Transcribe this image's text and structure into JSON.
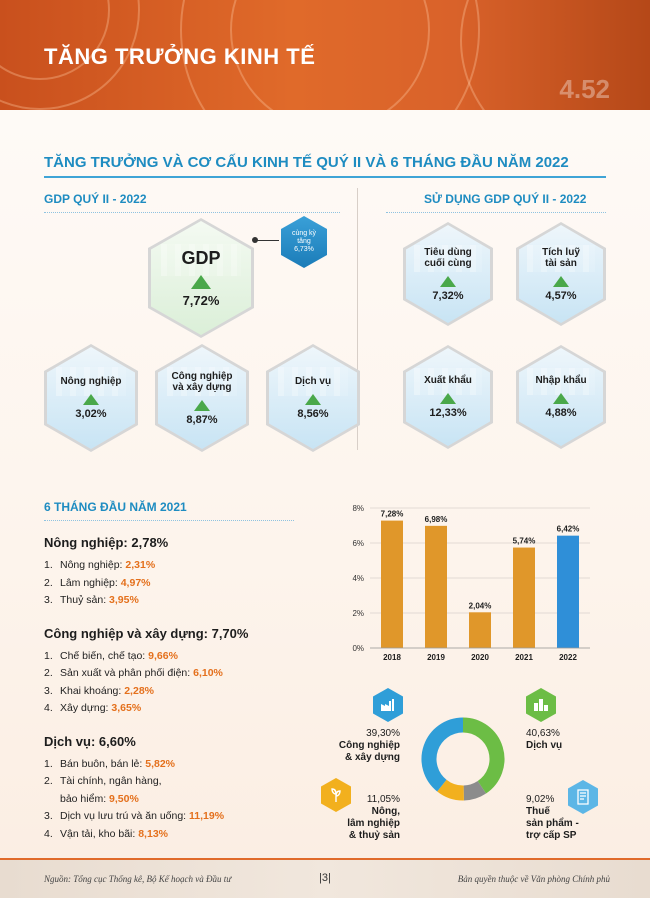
{
  "header": {
    "title": "TĂNG TRƯỞNG KINH TẾ",
    "deco_number": "4.52"
  },
  "section": {
    "title": "TĂNG TRƯỞNG VÀ CƠ CẤU KINH TẾ QUÝ II VÀ 6 THÁNG ĐẦU NĂM 2022"
  },
  "gdp_q2": {
    "title": "GDP QUÝ II - 2022",
    "main": {
      "label": "GDP",
      "value": "7,72%"
    },
    "badge": {
      "line1": "cùng kỳ",
      "line2": "tăng",
      "line3": "6,73%"
    },
    "sectors": [
      {
        "label": "Nông nghiệp",
        "value": "3,02%"
      },
      {
        "label": "Công nghiệp và xây dựng",
        "value": "8,87%"
      },
      {
        "label": "Dịch vụ",
        "value": "8,56%"
      }
    ]
  },
  "gdp_use": {
    "title": "SỬ DỤNG GDP QUÝ II - 2022",
    "items": [
      {
        "label": "Tiêu dùng cuối cùng",
        "value": "7,32%"
      },
      {
        "label": "Tích luỹ tài sản",
        "value": "4,57%"
      },
      {
        "label": "Xuất khẩu",
        "value": "12,33%"
      },
      {
        "label": "Nhập khẩu",
        "value": "4,88%"
      }
    ]
  },
  "six_months": {
    "title": "6 THÁNG ĐẦU NĂM 2021",
    "groups": [
      {
        "head": "Nông nghiệp: 2,78%",
        "items": [
          {
            "n": "1.",
            "label": "Nông nghiệp: ",
            "value": "2,31%"
          },
          {
            "n": "2.",
            "label": "Lâm nghiệp: ",
            "value": "4,97%"
          },
          {
            "n": "3.",
            "label": "Thuỷ sản: ",
            "value": "3,95%"
          }
        ]
      },
      {
        "head": "Công nghiệp và xây dựng: 7,70%",
        "items": [
          {
            "n": "1.",
            "label": "Chế biến, chế tạo: ",
            "value": "9,66%"
          },
          {
            "n": "2.",
            "label": "Sản xuất và phân phối điện: ",
            "value": "6,10%"
          },
          {
            "n": "3.",
            "label": "Khai khoáng: ",
            "value": "2,28%"
          },
          {
            "n": "4.",
            "label": "Xây dựng: ",
            "value": "3,65%"
          }
        ]
      },
      {
        "head": "Dịch vụ: 6,60%",
        "items": [
          {
            "n": "1.",
            "label": "Bán buôn, bán lẻ: ",
            "value": "5,82%"
          },
          {
            "n": "2.",
            "label": "Tài chính, ngân hàng,",
            "label2": "bảo hiểm: ",
            "value": "9,50%"
          },
          {
            "n": "3.",
            "label": "Dịch vụ lưu trú và ăn uống: ",
            "value": "11,19%"
          },
          {
            "n": "4.",
            "label": "Vận tải, kho bãi: ",
            "value": "8,13%"
          }
        ]
      }
    ]
  },
  "chart_data": [
    {
      "type": "bar",
      "categories": [
        "2018",
        "2019",
        "2020",
        "2021",
        "2022"
      ],
      "values": [
        7.28,
        6.98,
        2.04,
        5.74,
        6.42
      ],
      "data_labels": [
        "7,28%",
        "6,98%",
        "2,04%",
        "5,74%",
        "6,42%"
      ],
      "yticks": [
        "0%",
        "2%",
        "4%",
        "6%",
        "8%"
      ],
      "ylim": [
        0,
        8
      ],
      "colors": {
        "default": "#e0972a",
        "highlight": "#2f8fd8"
      },
      "highlight_index": 4,
      "grid": true
    },
    {
      "type": "pie",
      "categories": [
        "Công nghiệp & xây dựng",
        "Dịch vụ",
        "Thuế sản phẩm - trợ cấp SP",
        "Nông, lâm nghiệp & thuỷ sản"
      ],
      "values": [
        39.3,
        40.63,
        9.02,
        11.05
      ],
      "labels": [
        "39,30%",
        "40,63%",
        "9,02%",
        "11,05%"
      ],
      "colors": [
        "#2f9ed8",
        "#6cbd45",
        "#8c8c8c",
        "#f2b01e"
      ]
    }
  ],
  "donut_labels": {
    "industry": {
      "pct": "39,30%",
      "name1": "Công nghiệp",
      "name2": "& xây dựng"
    },
    "service": {
      "pct": "40,63%",
      "name1": "Dịch vụ"
    },
    "agri": {
      "pct": "11,05%",
      "name1": "Nông,",
      "name2": "lâm nghiệp",
      "name3": "& thuỷ sản"
    },
    "tax": {
      "pct": "9,02%",
      "name1": "Thuế",
      "name2": "sản phẩm -",
      "name3": "trợ cấp SP"
    }
  },
  "footer": {
    "source": "Nguồn: Tổng cục Thống kê, Bộ Kế hoạch và Đầu tư",
    "page": "|3|",
    "copyright": "Bản quyền thuộc về Văn phòng Chính phủ"
  },
  "icons": [
    "factory-icon",
    "city-icon",
    "crop-icon",
    "tax-icon"
  ]
}
